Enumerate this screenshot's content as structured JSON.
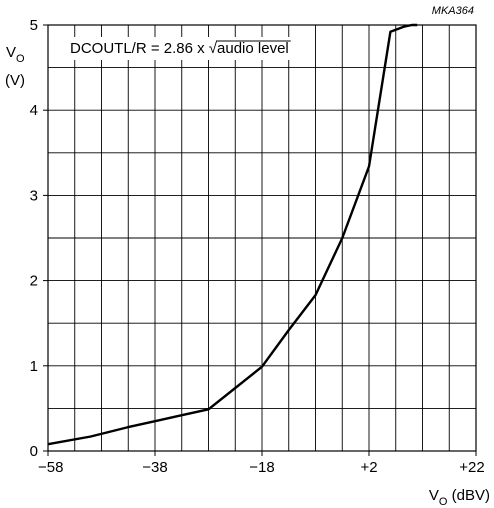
{
  "chart_data": {
    "type": "line",
    "reference_code": "MKA364",
    "annotation": {
      "prefix": "DCOUTL/R = 2.86 x ",
      "radical": "√",
      "radicand": "audio level"
    },
    "ylabel": {
      "main": "V",
      "sub": "O",
      "unit": "(V)"
    },
    "xlabel": {
      "main": "V",
      "sub": "O",
      "unit": "(dBV)"
    },
    "xlim": [
      -58,
      22
    ],
    "ylim": [
      0,
      5
    ],
    "x_ticks": [
      -58,
      -38,
      -18,
      2,
      22
    ],
    "x_tick_labels": [
      "−58",
      "−38",
      "−18",
      "+2",
      "+22"
    ],
    "y_ticks": [
      0,
      1,
      2,
      3,
      4,
      5
    ],
    "y_tick_labels": [
      "0",
      "1",
      "2",
      "3",
      "4",
      "5"
    ],
    "grid": true,
    "grid_x_step": 5,
    "grid_y_step": 0.5,
    "series": [
      {
        "x": [
          -58,
          -50,
          -43,
          -38,
          -33,
          -28,
          -23,
          -18,
          -13,
          -8,
          -3,
          2,
          6,
          8.5,
          10,
          11
        ],
        "y": [
          0.08,
          0.17,
          0.28,
          0.35,
          0.42,
          0.49,
          0.74,
          0.99,
          1.42,
          1.83,
          2.5,
          3.34,
          4.92,
          4.98,
          5.0,
          5.0
        ]
      }
    ]
  }
}
